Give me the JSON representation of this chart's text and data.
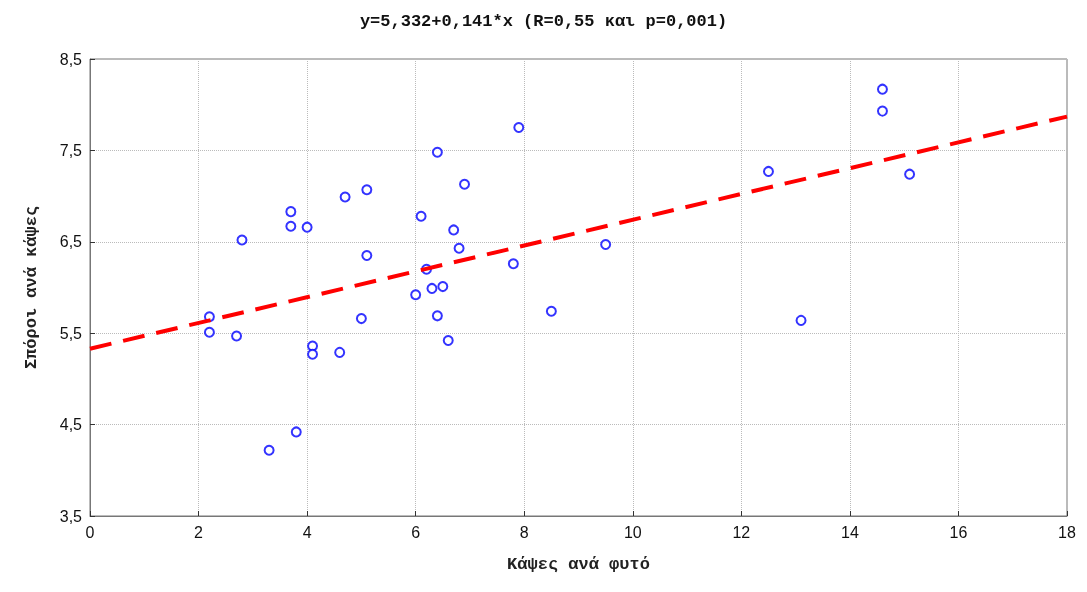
{
  "chart_data": {
    "type": "scatter",
    "title": "y=5,332+0,141*x (R=0,55 και p=0,001)",
    "xlabel": "Κάψες ανά φυτό",
    "ylabel": "Σπόροι ανά κάψες",
    "xlim": [
      0,
      18
    ],
    "xticks": [
      0,
      2,
      4,
      6,
      8,
      10,
      12,
      14,
      16,
      18
    ],
    "ylim": [
      3.5,
      8.5
    ],
    "yticks": [
      {
        "value": 3.5,
        "label": "3,5"
      },
      {
        "value": 4.5,
        "label": "4,5"
      },
      {
        "value": 5.5,
        "label": "5,5"
      },
      {
        "value": 6.5,
        "label": "6,5"
      },
      {
        "value": 7.5,
        "label": "7,5"
      },
      {
        "value": 8.5,
        "label": "8,5"
      }
    ],
    "grid": true,
    "marker": "circle",
    "series": [
      {
        "color": "#0000ff",
        "x": [
          2.2,
          2.2,
          2.7,
          2.8,
          3.3,
          3.8,
          3.7,
          3.7,
          4.0,
          4.1,
          4.1,
          4.6,
          4.7,
          5.1,
          5.1,
          5.0,
          7.9,
          6.4,
          6.9,
          6.1,
          6.7,
          6.8,
          9.5,
          7.8,
          6.2,
          6.0,
          6.3,
          6.5,
          6.4,
          8.5,
          6.6,
          14.6,
          14.6,
          12.5,
          15.1,
          13.1
        ],
        "values": [
          5.68,
          5.51,
          5.47,
          6.52,
          4.22,
          4.42,
          6.83,
          6.67,
          6.66,
          5.36,
          5.27,
          5.29,
          6.99,
          7.07,
          6.35,
          5.66,
          7.75,
          7.48,
          7.13,
          6.78,
          6.63,
          6.43,
          6.47,
          6.26,
          6.2,
          5.92,
          5.99,
          6.01,
          5.69,
          5.74,
          5.42,
          8.17,
          7.93,
          7.27,
          7.24,
          5.64
        ]
      },
      {
        "type": "line",
        "color": "#ff0000",
        "line_style": "dashed",
        "marker": "none",
        "x": [
          0,
          18
        ],
        "values": [
          5.33,
          7.87
        ]
      }
    ]
  }
}
